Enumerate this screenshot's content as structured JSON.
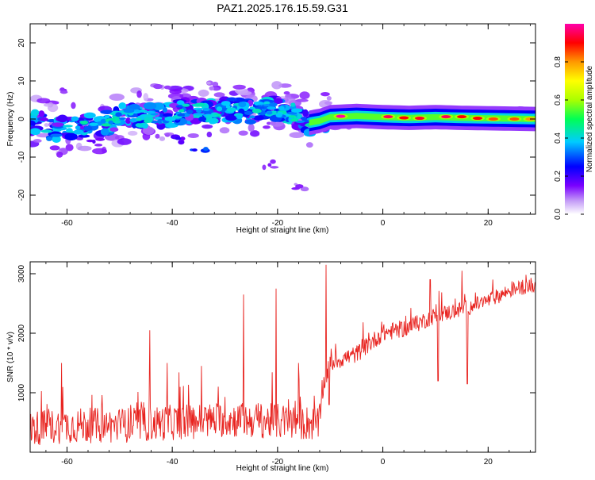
{
  "title": "PAZ1.2025.176.15.59.G31",
  "colors": {
    "series": "#e8231f",
    "frame": "#000000"
  },
  "chart_data": [
    {
      "type": "heatmap",
      "xlabel": "Height of straight line (km)",
      "ylabel": "Frequency (Hz)",
      "xlim": [
        -67,
        29
      ],
      "ylim": [
        -25,
        25
      ],
      "xticks": [
        -60,
        -40,
        -20,
        0,
        20
      ],
      "yticks": [
        -20,
        -10,
        0,
        10,
        20
      ],
      "colorbar": {
        "label": "Normalized spectral amplitude",
        "range": [
          0,
          1
        ],
        "ticks": [
          "0.0",
          "0.2",
          "0.4",
          "0.6",
          "0.8"
        ],
        "tick_values": [
          0.0,
          0.2,
          0.4,
          0.6,
          0.8
        ]
      },
      "ridge": [
        {
          "x": -66,
          "y": -1.0
        },
        {
          "x": -62,
          "y": -3.0
        },
        {
          "x": -58,
          "y": -2.0
        },
        {
          "x": -54,
          "y": -2.0
        },
        {
          "x": -50,
          "y": 0.5
        },
        {
          "x": -46,
          "y": 1.0
        },
        {
          "x": -42,
          "y": 0.5
        },
        {
          "x": -38,
          "y": 2.0
        },
        {
          "x": -34,
          "y": 2.0
        },
        {
          "x": -30,
          "y": 2.5
        },
        {
          "x": -26,
          "y": 2.0
        },
        {
          "x": -22,
          "y": 3.0
        },
        {
          "x": -18,
          "y": 2.0
        },
        {
          "x": -14,
          "y": -1.0
        },
        {
          "x": -12,
          "y": -0.5
        },
        {
          "x": -10,
          "y": 0.5
        },
        {
          "x": -5,
          "y": 0.8
        },
        {
          "x": 0,
          "y": 0.5
        },
        {
          "x": 5,
          "y": 0.3
        },
        {
          "x": 10,
          "y": 0.5
        },
        {
          "x": 15,
          "y": 0.3
        },
        {
          "x": 20,
          "y": 0.2
        },
        {
          "x": 25,
          "y": 0.1
        },
        {
          "x": 29,
          "y": 0.0
        }
      ],
      "hotspots": [
        {
          "x": -8,
          "y": 0.7,
          "a": 1.0
        },
        {
          "x": 1,
          "y": 0.6,
          "a": 0.95
        },
        {
          "x": 4,
          "y": 0.3,
          "a": 0.9
        },
        {
          "x": 7,
          "y": 0.2,
          "a": 0.92
        },
        {
          "x": 12,
          "y": 0.6,
          "a": 0.95
        },
        {
          "x": 15,
          "y": 0.6,
          "a": 0.9
        },
        {
          "x": 18,
          "y": 0.2,
          "a": 0.9
        },
        {
          "x": 21,
          "y": 0.0,
          "a": 0.85
        },
        {
          "x": 25,
          "y": 0.0,
          "a": 0.85
        },
        {
          "x": 28,
          "y": 0.0,
          "a": 0.8
        }
      ],
      "outliers": [
        {
          "x": -35,
          "y": -8.5,
          "a": 0.3
        },
        {
          "x": -22,
          "y": -12.0,
          "a": 0.15
        },
        {
          "x": -16,
          "y": -17.5,
          "a": 0.12
        },
        {
          "x": -38,
          "y": -5.5,
          "a": 0.18
        },
        {
          "x": -55,
          "y": -6.0,
          "a": 0.2
        },
        {
          "x": -62,
          "y": 7.5,
          "a": 0.12
        },
        {
          "x": -33,
          "y": 9.0,
          "a": 0.1
        },
        {
          "x": -42,
          "y": 8.5,
          "a": 0.1
        }
      ]
    },
    {
      "type": "line",
      "xlabel": "Height of straight line (km)",
      "ylabel": "SNR (10 * v/v)",
      "xlim": [
        -67,
        29
      ],
      "ylim": [
        0,
        3200
      ],
      "xticks": [
        -60,
        -40,
        -20,
        0,
        20
      ],
      "yticks": [
        1000,
        2000,
        3000
      ],
      "profile": [
        {
          "x": -67,
          "y": 400
        },
        {
          "x": -60,
          "y": 450
        },
        {
          "x": -50,
          "y": 450
        },
        {
          "x": -40,
          "y": 500
        },
        {
          "x": -30,
          "y": 550
        },
        {
          "x": -20,
          "y": 520
        },
        {
          "x": -12,
          "y": 480
        },
        {
          "x": -11.5,
          "y": 1050
        },
        {
          "x": -10,
          "y": 1500
        },
        {
          "x": -5,
          "y": 1650
        },
        {
          "x": 0,
          "y": 2000
        },
        {
          "x": 5,
          "y": 2100
        },
        {
          "x": 10,
          "y": 2300
        },
        {
          "x": 15,
          "y": 2400
        },
        {
          "x": 20,
          "y": 2550
        },
        {
          "x": 25,
          "y": 2750
        },
        {
          "x": 29,
          "y": 2800
        }
      ],
      "noise": [
        {
          "x": -67,
          "amp": 300
        },
        {
          "x": -12,
          "amp": 300
        },
        {
          "x": -11,
          "amp": 150
        },
        {
          "x": 0,
          "amp": 150
        },
        {
          "x": 29,
          "amp": 120
        }
      ],
      "spikes": [
        {
          "x": -61,
          "y": 1500
        },
        {
          "x": -44.3,
          "y": 2050
        },
        {
          "x": -41,
          "y": 1500
        },
        {
          "x": -34.5,
          "y": 1450
        },
        {
          "x": -26.5,
          "y": 2650
        },
        {
          "x": -20.3,
          "y": 2750
        },
        {
          "x": -16,
          "y": 1500
        },
        {
          "x": -10.8,
          "y": 3150
        },
        {
          "x": -10.2,
          "y": 3150
        },
        {
          "x": 9,
          "y": 2900
        },
        {
          "x": 15,
          "y": 3050
        }
      ],
      "dips": [
        {
          "x": -10.2,
          "y": 800
        },
        {
          "x": 10.5,
          "y": 1200
        },
        {
          "x": 16,
          "y": 1150
        }
      ]
    }
  ]
}
